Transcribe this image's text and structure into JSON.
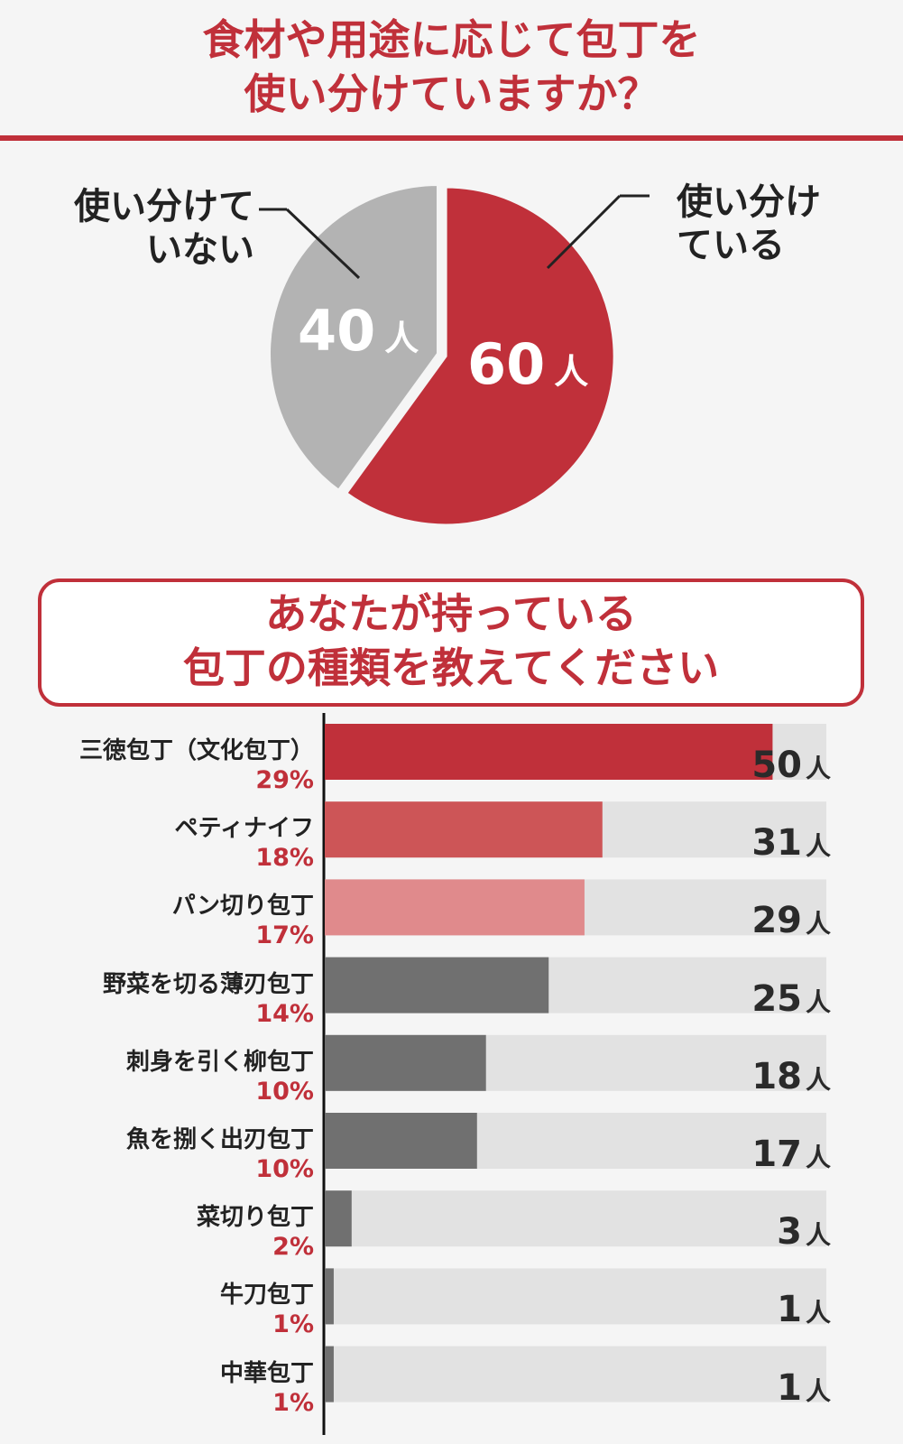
{
  "question1": {
    "title_line1": "食材や用途に応じて包丁を",
    "title_line2": "使い分けていますか？"
  },
  "question2": {
    "title_line1": "あなたが持っている",
    "title_line2": "包丁の種類を教えてください"
  },
  "colors": {
    "accent_red": "#c0303a",
    "pie_gray": "#b3b3b3",
    "bar_track": "#e2e2e2",
    "bar_dark_gray": "#707070",
    "bar_red_1": "#c0303a",
    "bar_red_2": "#cd5557",
    "bar_red_3": "#e08a8c"
  },
  "chart_data": [
    {
      "type": "pie",
      "unit": "人",
      "slices": [
        {
          "label_line1": "使い分け",
          "label_line2": "ている",
          "value": 60,
          "display": "60",
          "color": "#c0303a"
        },
        {
          "label_line1": "使い分けて",
          "label_line2": "いない",
          "value": 40,
          "display": "40",
          "color": "#b3b3b3"
        }
      ]
    },
    {
      "type": "bar",
      "orientation": "horizontal",
      "unit": "人",
      "xlim": [
        0,
        56
      ],
      "categories": [
        "三徳包丁（文化包丁）",
        "ペティナイフ",
        "パン切り包丁",
        "野菜を切る薄刃包丁",
        "刺身を引く柳包丁",
        "魚を捌く出刃包丁",
        "菜切り包丁",
        "牛刀包丁",
        "中華包丁"
      ],
      "values": [
        50,
        31,
        29,
        25,
        18,
        17,
        3,
        1,
        1
      ],
      "percent_labels": [
        "29%",
        "18%",
        "17%",
        "14%",
        "10%",
        "10%",
        "2%",
        "1%",
        "1%"
      ],
      "value_labels": [
        "50",
        "31",
        "29",
        "25",
        "18",
        "17",
        "3",
        "1",
        "1"
      ],
      "bar_colors": [
        "#c0303a",
        "#cd5557",
        "#e08a8c",
        "#707070",
        "#707070",
        "#707070",
        "#707070",
        "#707070",
        "#707070"
      ]
    }
  ]
}
